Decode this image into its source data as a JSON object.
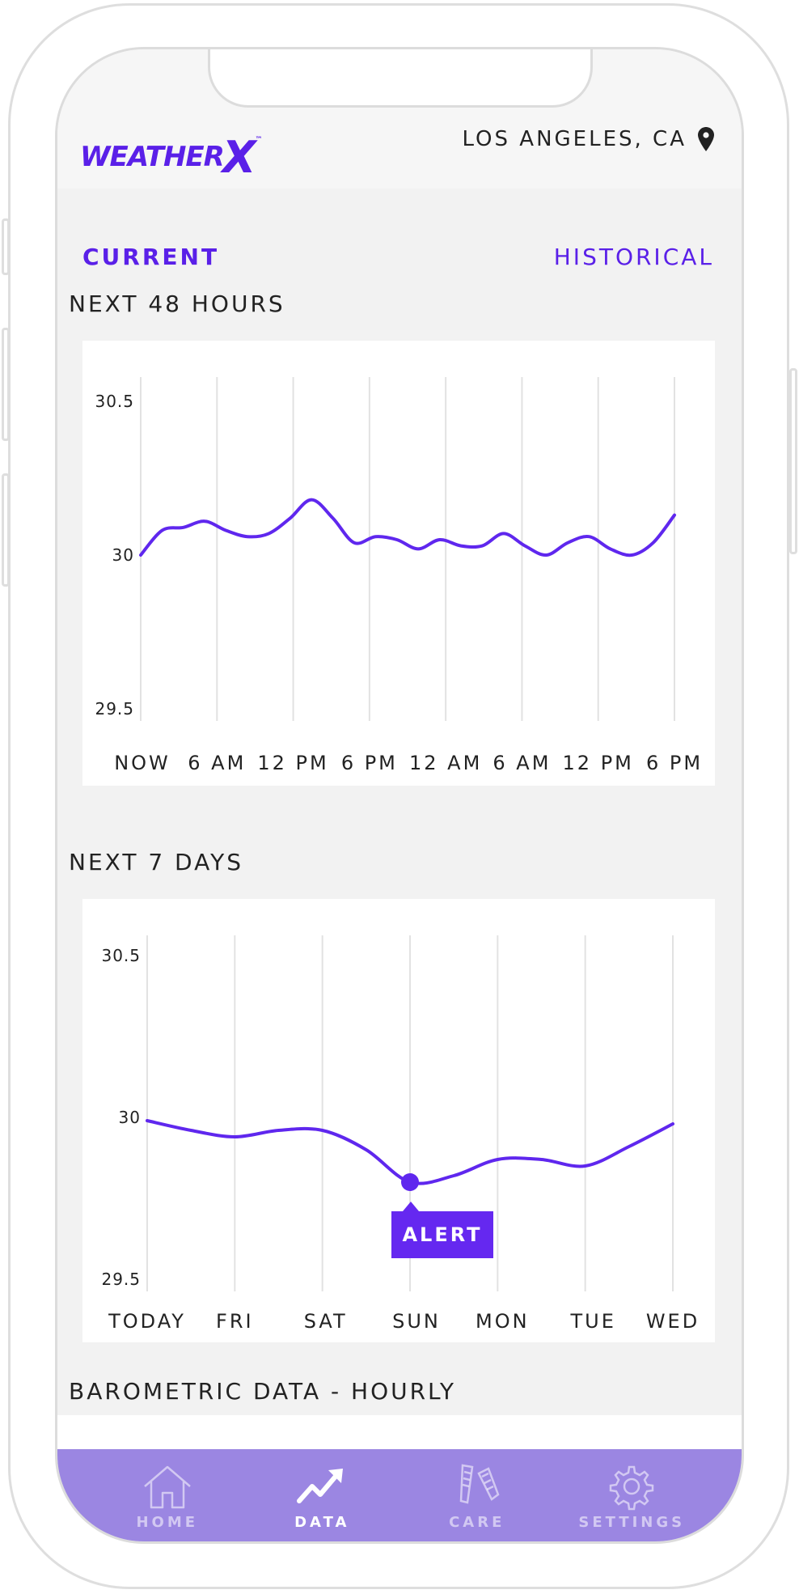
{
  "header": {
    "brand": "WEATHER",
    "brand_x": "X",
    "brand_tm": "™",
    "location": "LOS ANGELES, CA"
  },
  "tabs": {
    "current": "CURRENT",
    "historical": "HISTORICAL"
  },
  "sections": {
    "next_48": "NEXT 48 HOURS",
    "next_7": "NEXT 7 DAYS",
    "barometric": "BAROMETRIC DATA - HOURLY"
  },
  "alert": {
    "label": "ALERT"
  },
  "nav": [
    {
      "label": "HOME",
      "icon": "home-icon"
    },
    {
      "label": "DATA",
      "icon": "chart-trend-icon"
    },
    {
      "label": "CARE",
      "icon": "earplugs-icon"
    },
    {
      "label": "SETTINGS",
      "icon": "gear-icon"
    }
  ],
  "colors": {
    "accent": "#5a20e8",
    "line": "#5f27ee",
    "nav_bg": "#9b86e2",
    "grid": "#e2e2e2"
  },
  "chart_data": [
    {
      "type": "line",
      "title": "NEXT 48 HOURS",
      "x_tick_labels": [
        "NOW",
        "6 AM",
        "12 PM",
        "6 PM",
        "12 AM",
        "6 AM",
        "12 PM",
        "6 PM"
      ],
      "y_tick_labels": [
        "30.5",
        "30",
        "29.5"
      ],
      "y_ticks": [
        30.5,
        30.0,
        29.5
      ],
      "ylim": [
        29.5,
        30.5
      ],
      "xlim": [
        0,
        28
      ],
      "grid": "vertical",
      "series": [
        {
          "x": [
            0,
            1,
            2,
            3,
            4,
            5,
            6,
            7,
            8,
            9,
            10,
            11,
            12,
            13,
            14,
            15,
            16,
            17,
            18,
            19,
            20,
            21,
            22,
            23,
            24,
            25,
            26,
            27,
            28
          ],
          "values": [
            30.0,
            30.08,
            30.09,
            30.11,
            30.08,
            30.06,
            30.07,
            30.12,
            30.18,
            30.12,
            30.04,
            30.06,
            30.05,
            30.02,
            30.05,
            30.03,
            30.03,
            30.07,
            30.03,
            30.0,
            30.04,
            30.06,
            30.02,
            30.0,
            30.04,
            30.13,
            30.13,
            30.13,
            30.13
          ]
        }
      ]
    },
    {
      "type": "line",
      "title": "NEXT 7 DAYS",
      "categories": [
        "TODAY",
        "FRI",
        "SAT",
        "SUN",
        "MON",
        "TUE",
        "WED"
      ],
      "y_tick_labels": [
        "30.5",
        "30",
        "29.5"
      ],
      "y_ticks": [
        30.5,
        30.0,
        29.5
      ],
      "ylim": [
        29.5,
        30.5
      ],
      "grid": "vertical",
      "series": [
        {
          "x": [
            0,
            0.5,
            1,
            1.5,
            2,
            2.5,
            3,
            3.5,
            4,
            4.5,
            5,
            5.5,
            6
          ],
          "values": [
            29.99,
            29.96,
            29.94,
            29.96,
            29.96,
            29.9,
            29.8,
            29.82,
            29.87,
            29.87,
            29.85,
            29.91,
            29.98
          ]
        }
      ],
      "highlight": {
        "x": 3,
        "value": 29.8,
        "label": "ALERT"
      }
    }
  ]
}
